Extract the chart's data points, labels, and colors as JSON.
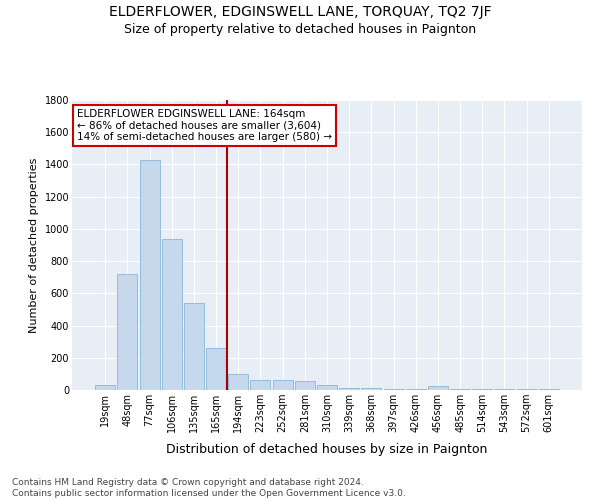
{
  "title": "ELDERFLOWER, EDGINSWELL LANE, TORQUAY, TQ2 7JF",
  "subtitle": "Size of property relative to detached houses in Paignton",
  "xlabel": "Distribution of detached houses by size in Paignton",
  "ylabel": "Number of detached properties",
  "categories": [
    "19sqm",
    "48sqm",
    "77sqm",
    "106sqm",
    "135sqm",
    "165sqm",
    "194sqm",
    "223sqm",
    "252sqm",
    "281sqm",
    "310sqm",
    "339sqm",
    "368sqm",
    "397sqm",
    "426sqm",
    "456sqm",
    "485sqm",
    "514sqm",
    "543sqm",
    "572sqm",
    "601sqm"
  ],
  "values": [
    30,
    720,
    1430,
    940,
    540,
    260,
    100,
    65,
    60,
    55,
    30,
    10,
    10,
    5,
    5,
    25,
    5,
    5,
    5,
    5,
    5
  ],
  "bar_color": "#c5d8ec",
  "bar_edge_color": "#7aaed4",
  "marker_index": 5,
  "marker_color": "#aa0000",
  "ylim": [
    0,
    1800
  ],
  "yticks": [
    0,
    200,
    400,
    600,
    800,
    1000,
    1200,
    1400,
    1600,
    1800
  ],
  "annotation_text": "ELDERFLOWER EDGINSWELL LANE: 164sqm\n← 86% of detached houses are smaller (3,604)\n14% of semi-detached houses are larger (580) →",
  "annotation_box_color": "#ffffff",
  "annotation_border_color": "#cc0000",
  "background_color": "#e8eef5",
  "footer_text": "Contains HM Land Registry data © Crown copyright and database right 2024.\nContains public sector information licensed under the Open Government Licence v3.0.",
  "title_fontsize": 10,
  "subtitle_fontsize": 9,
  "xlabel_fontsize": 9,
  "ylabel_fontsize": 8,
  "tick_fontsize": 7,
  "footer_fontsize": 6.5,
  "annotation_fontsize": 7.5
}
